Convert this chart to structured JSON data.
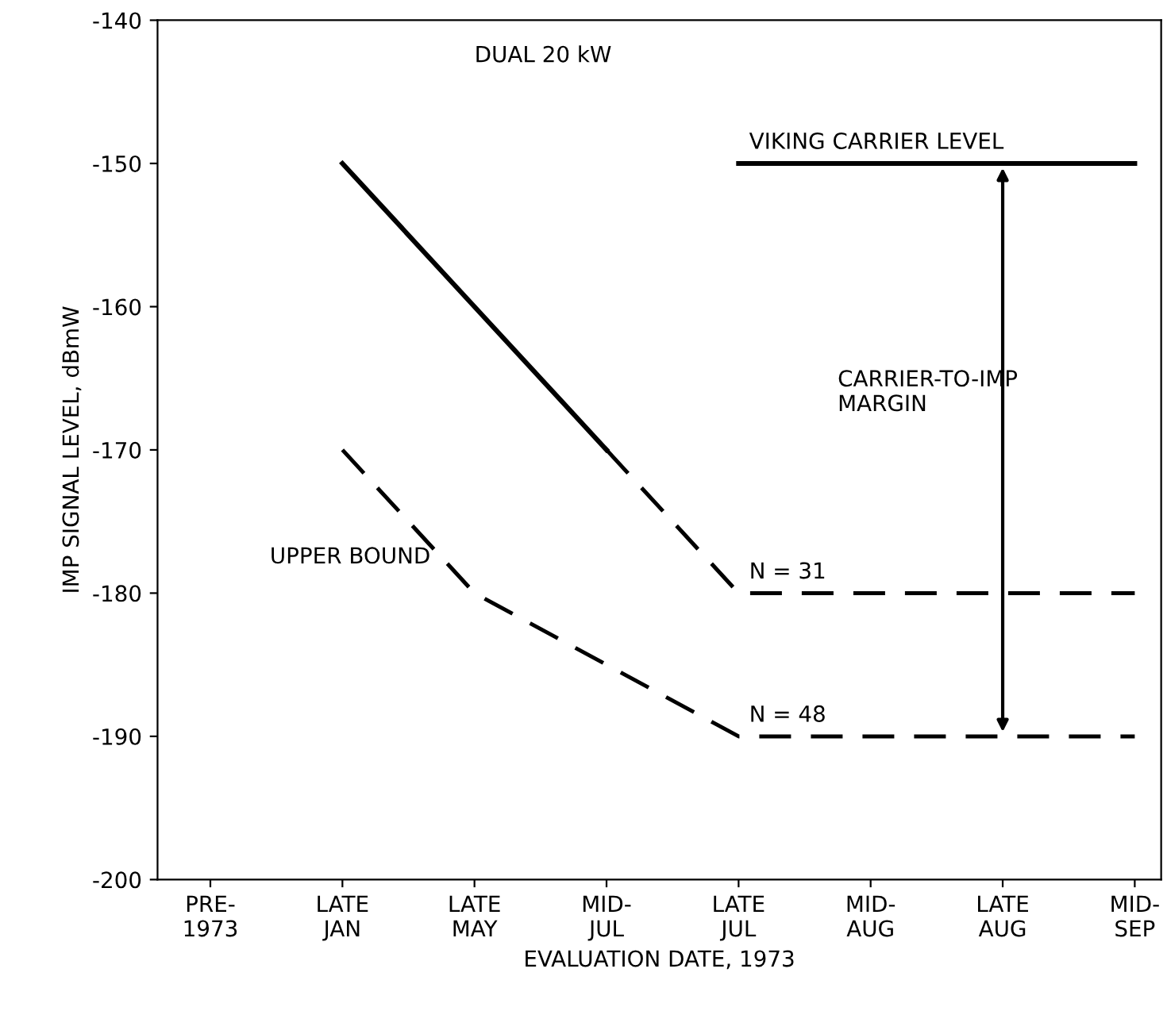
{
  "chart_data": {
    "type": "line",
    "categories": [
      "PRE-\n1973",
      "LATE\nJAN",
      "LATE\nMAY",
      "MID-\nJUL",
      "LATE\nJUL",
      "MID-\nAUG",
      "LATE\nAUG",
      "MID-\nSEP"
    ],
    "xlabel": "EVALUATION DATE, 1973",
    "ylabel": "IMP SIGNAL LEVEL, dBmW",
    "ylim": [
      -200,
      -140
    ],
    "yticks": [
      -200,
      -190,
      -180,
      -170,
      -160,
      -150,
      -140
    ],
    "grid": false,
    "legend": false,
    "series": [
      {
        "color": "#000000",
        "line_style": "solid",
        "values": [
          null,
          -150,
          -160,
          -170,
          null,
          null,
          null,
          null
        ]
      },
      {
        "name": "N = 31",
        "color": "#000000",
        "line_style": "dashed",
        "values": [
          null,
          null,
          null,
          -170,
          -180,
          -180,
          -180,
          -180
        ]
      },
      {
        "name": "N = 48",
        "color": "#000000",
        "line_style": "dashed",
        "values": [
          null,
          -170,
          -180,
          -185,
          -190,
          -190,
          -190,
          -190
        ]
      },
      {
        "name": "VIKING CARRIER LEVEL",
        "color": "#000000",
        "line_style": "solid",
        "values": [
          null,
          null,
          null,
          null,
          -150,
          -150,
          -150,
          -150
        ]
      }
    ],
    "annotations": [
      "DUAL 20 kW",
      "UPPER BOUND",
      "CARRIER-TO-IMP\nMARGIN"
    ]
  }
}
